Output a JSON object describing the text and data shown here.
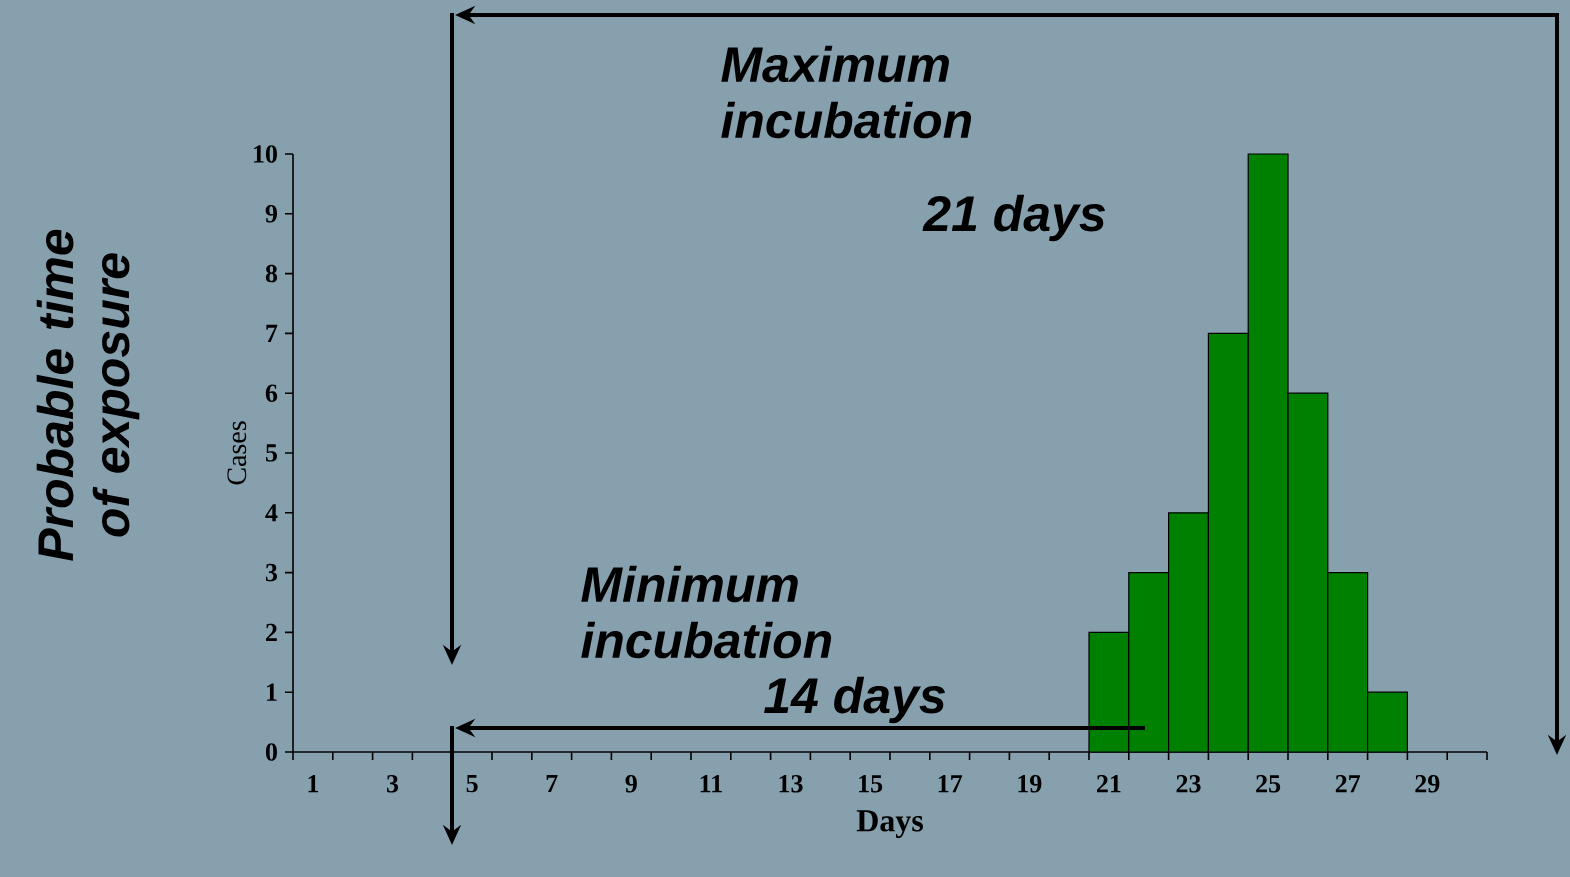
{
  "chart_data": {
    "type": "bar",
    "xlabel": "Days",
    "ylabel": "Cases",
    "categories": [
      "1",
      null,
      "3",
      null,
      "5",
      null,
      "7",
      null,
      "9",
      null,
      "11",
      null,
      "13",
      null,
      "15",
      null,
      "17",
      null,
      "19",
      null,
      "21",
      null,
      "23",
      null,
      "25",
      null,
      "27",
      null,
      "29",
      null
    ],
    "values": [
      0,
      0,
      0,
      0,
      0,
      0,
      0,
      0,
      0,
      0,
      0,
      0,
      0,
      0,
      0,
      0,
      0,
      0,
      0,
      0,
      2,
      3,
      4,
      7,
      10,
      6,
      3,
      1,
      0,
      0
    ],
    "color": "#008000",
    "ylim": [
      0,
      10
    ],
    "yticks": [
      0,
      1,
      2,
      3,
      4,
      5,
      6,
      7,
      8,
      9,
      10
    ],
    "annotations": [
      "Probable time of exposure",
      "Maximum incubation",
      "21 days",
      "Minimum incubation",
      "14 days"
    ]
  }
}
